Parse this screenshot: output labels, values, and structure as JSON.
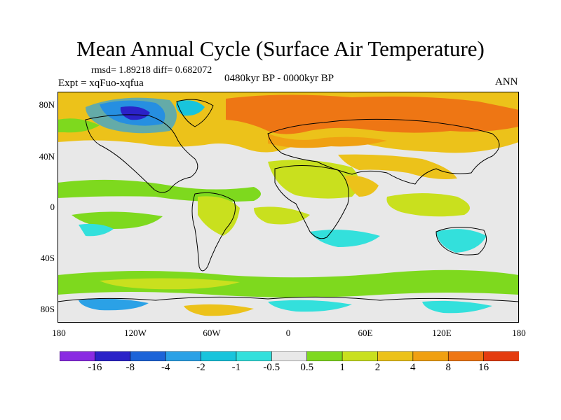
{
  "title": "Mean Annual Cycle (Surface Air Temperature)",
  "stats": "rmsd= 1.89218 diff= 0.682072",
  "experiment": "Expt = xqFuo-xqfua",
  "period": "0480kyr BP - 0000kyr BP",
  "season": "ANN",
  "y_axis": {
    "labels": [
      "80N",
      "40N",
      "0",
      "40S",
      "80S"
    ]
  },
  "x_axis": {
    "labels": [
      "180",
      "120W",
      "60W",
      "0",
      "60E",
      "120E",
      "180"
    ]
  },
  "colorbar": {
    "labels": [
      "-16",
      "-8",
      "-4",
      "-2",
      "-1",
      "-0.5",
      "0.5",
      "1",
      "2",
      "4",
      "8",
      "16"
    ],
    "colors": [
      "#8a2be2",
      "#2b22c8",
      "#1d64d8",
      "#2ba1e6",
      "#18c4dc",
      "#33e0dc",
      "#e8e8e8",
      "#7ed91e",
      "#c9e01e",
      "#ecc21a",
      "#f0a012",
      "#ee7614",
      "#e43c10"
    ]
  },
  "palette": {
    "land_outline": "#000000",
    "background": "#e8e8e8"
  }
}
